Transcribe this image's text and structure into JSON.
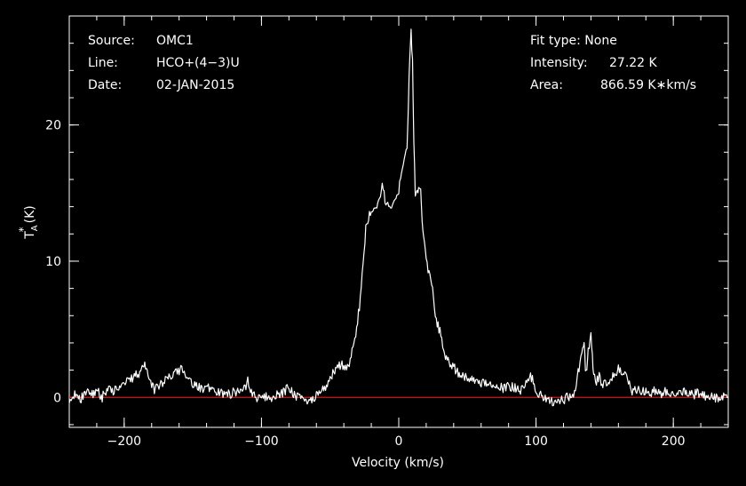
{
  "info": {
    "source_key": "Source:",
    "source_val": "OMC1",
    "line_key": "Line:",
    "line_val": "HCO+(4−3)U",
    "date_key": "Date:",
    "date_val": "02-JAN-2015",
    "fit_type": "Fit type: None",
    "intensity_key": "Intensity:",
    "intensity_val": "27.22 K",
    "area_key": "Area:",
    "area_val": "866.59 K∗km/s"
  },
  "colors": {
    "background": "#000000",
    "foreground": "#ffffff",
    "baseline": "#cc1b1b"
  },
  "chart_data": {
    "type": "line",
    "xlabel": "Velocity (km/s)",
    "ylabel_main": "T",
    "ylabel_sub": "A",
    "ylabel_sup": "*",
    "ylabel_unit": "(K)",
    "xlim": [
      -240,
      240
    ],
    "ylim": [
      -2.2,
      28
    ],
    "xticks": [
      -200,
      -100,
      0,
      100,
      200
    ],
    "xtick_labels": [
      "−200",
      "−100",
      "0",
      "100",
      "200"
    ],
    "yticks": [
      0,
      10,
      20
    ],
    "ytick_labels": [
      "0",
      "10",
      "20"
    ],
    "x_minor_step": 20,
    "y_minor_step": 2,
    "baseline_y": 0,
    "grid": false,
    "series": [
      {
        "x": [
          -240,
          -236,
          -232,
          -228,
          -224,
          -220,
          -216,
          -212,
          -208,
          -204,
          -200,
          -196,
          -192,
          -188,
          -185,
          -182,
          -178,
          -174,
          -170,
          -166,
          -162,
          -158,
          -155,
          -152,
          -148,
          -144,
          -140,
          -136,
          -132,
          -128,
          -124,
          -120,
          -116,
          -112,
          -110,
          -108,
          -104,
          -100,
          -96,
          -92,
          -88,
          -84,
          -80,
          -78,
          -76,
          -72,
          -68,
          -64,
          -60,
          -56,
          -52,
          -48,
          -44,
          -40,
          -38,
          -36,
          -32,
          -28,
          -24,
          -20,
          -16,
          -12,
          -10,
          -8,
          -6,
          -4,
          -2,
          0,
          2,
          4,
          6,
          7,
          8,
          9,
          10,
          11,
          12,
          14,
          15,
          16,
          17,
          18,
          20,
          22,
          24,
          26,
          28,
          30,
          32,
          34,
          36,
          40,
          44,
          48,
          52,
          56,
          60,
          64,
          68,
          72,
          76,
          80,
          84,
          88,
          92,
          96,
          98,
          100,
          104,
          108,
          112,
          116,
          120,
          124,
          128,
          130,
          132,
          134,
          135,
          136,
          137,
          138,
          140,
          141,
          142,
          144,
          146,
          148,
          150,
          152,
          154,
          156,
          158,
          160,
          162,
          164,
          166,
          168,
          170,
          174,
          178,
          182,
          186,
          190,
          194,
          198,
          202,
          206,
          210,
          214,
          218,
          222,
          226,
          230,
          234,
          238,
          240
        ],
        "y": [
          -0.3,
          0.3,
          -0.2,
          0.4,
          0.1,
          0.6,
          0.0,
          0.7,
          0.5,
          0.8,
          1.1,
          1.3,
          1.6,
          1.9,
          2.3,
          1.5,
          0.6,
          0.9,
          1.2,
          1.5,
          1.8,
          2.1,
          1.7,
          1.1,
          0.9,
          0.6,
          0.8,
          0.5,
          0.4,
          0.3,
          0.2,
          0.4,
          0.3,
          0.6,
          1.3,
          0.5,
          0.0,
          -0.2,
          0.1,
          0.0,
          0.2,
          0.4,
          0.8,
          0.5,
          0.2,
          0.0,
          -0.2,
          -0.3,
          0.2,
          0.5,
          1.0,
          1.8,
          2.3,
          2.4,
          2.0,
          2.6,
          4.2,
          7.2,
          12.4,
          13.8,
          14.2,
          15.5,
          14.6,
          14.2,
          14.0,
          14.2,
          14.3,
          15.3,
          16.8,
          17.6,
          18.2,
          21.5,
          25.0,
          27.0,
          24.5,
          18.5,
          15.0,
          14.8,
          15.4,
          15.0,
          13.0,
          11.8,
          10.0,
          9.2,
          8.5,
          6.5,
          5.4,
          4.8,
          3.8,
          3.0,
          2.6,
          2.2,
          1.7,
          1.5,
          1.2,
          1.3,
          1.0,
          1.1,
          0.8,
          0.9,
          0.6,
          0.8,
          0.7,
          0.5,
          0.8,
          1.5,
          1.3,
          0.5,
          0.1,
          -0.2,
          -0.3,
          -0.1,
          -0.2,
          0.1,
          0.2,
          1.6,
          2.4,
          3.6,
          3.8,
          2.2,
          1.8,
          3.4,
          4.8,
          3.0,
          1.5,
          1.2,
          1.6,
          0.9,
          1.0,
          1.2,
          1.3,
          1.5,
          1.8,
          2.1,
          2.0,
          1.9,
          1.5,
          1.2,
          0.5,
          0.6,
          0.4,
          0.3,
          0.5,
          0.2,
          0.4,
          0.3,
          0.1,
          0.4,
          0.3,
          0.2,
          0.3,
          0.1,
          0.2,
          0.0,
          -0.1,
          0.1,
          0.0
        ]
      }
    ]
  }
}
